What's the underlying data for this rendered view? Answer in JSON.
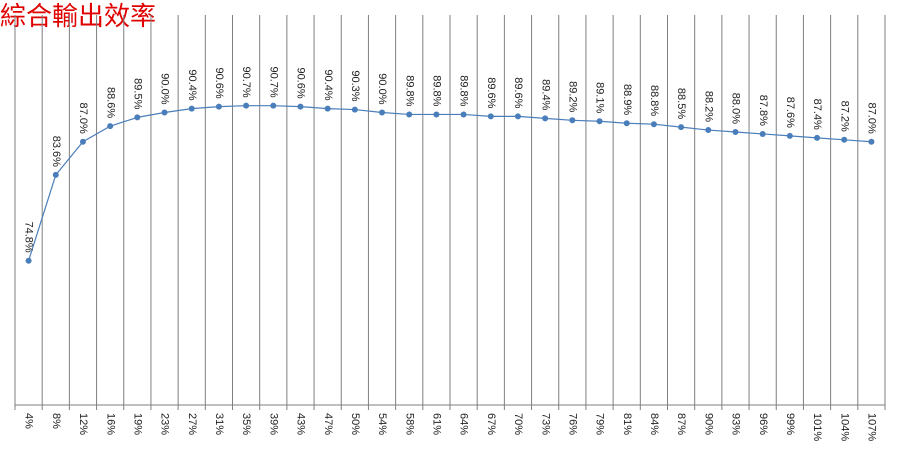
{
  "chart_data": {
    "type": "line",
    "title": "綜合輸出效率",
    "categories": [
      "4%",
      "8%",
      "12%",
      "16%",
      "19%",
      "23%",
      "27%",
      "31%",
      "35%",
      "39%",
      "43%",
      "47%",
      "50%",
      "54%",
      "58%",
      "61%",
      "64%",
      "67%",
      "70%",
      "73%",
      "76%",
      "79%",
      "81%",
      "84%",
      "87%",
      "90%",
      "93%",
      "96%",
      "99%",
      "101%",
      "104%",
      "107%"
    ],
    "values": [
      74.8,
      83.6,
      87.0,
      88.6,
      89.5,
      90.0,
      90.4,
      90.6,
      90.7,
      90.7,
      90.6,
      90.4,
      90.3,
      90.0,
      89.8,
      89.8,
      89.8,
      89.6,
      89.6,
      89.4,
      89.2,
      89.1,
      88.9,
      88.8,
      88.5,
      88.2,
      88.0,
      87.8,
      87.6,
      87.4,
      87.2,
      87.0
    ],
    "value_labels": [
      "74.8%",
      "83.6%",
      "87.0%",
      "88.6%",
      "89.5%",
      "90.0%",
      "90.4%",
      "90.6%",
      "90.7%",
      "90.7%",
      "90.6%",
      "90.4%",
      "90.3%",
      "90.0%",
      "89.8%",
      "89.8%",
      "89.8%",
      "89.6%",
      "89.6%",
      "89.4%",
      "89.2%",
      "89.1%",
      "88.9%",
      "88.8%",
      "88.5%",
      "88.2%",
      "88.0%",
      "87.8%",
      "87.6%",
      "87.4%",
      "87.2%",
      "87.0%"
    ],
    "color": "#4a7ebb",
    "ylim": [
      60,
      100
    ],
    "grid": true
  }
}
